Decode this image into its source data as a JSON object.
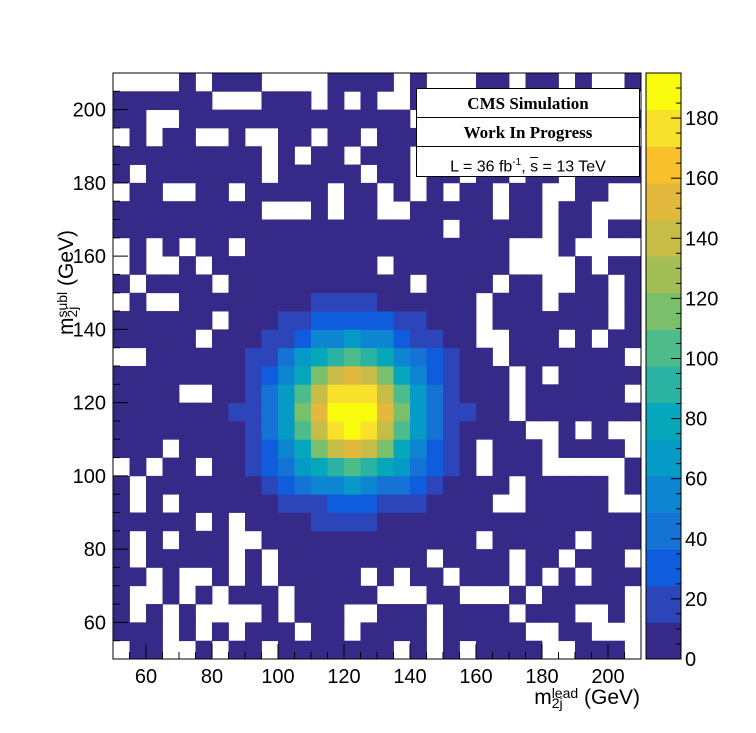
{
  "chart_data": {
    "type": "heatmap",
    "title": "",
    "xlabel": "m",
    "xlabel_sup": "lead",
    "xlabel_sub": "2j",
    "xlabel_unit": " (GeV)",
    "ylabel": "m",
    "ylabel_sup": "subl",
    "ylabel_sub": "2j",
    "ylabel_unit": " (GeV)",
    "xlim": [
      50,
      210
    ],
    "ylim": [
      50,
      210
    ],
    "bin_width": 5,
    "x_ticks": [
      60,
      80,
      100,
      120,
      140,
      160,
      180,
      200
    ],
    "y_ticks": [
      60,
      80,
      100,
      120,
      140,
      160,
      180,
      200
    ],
    "z_range": [
      0,
      195
    ],
    "z_ticks": [
      0,
      20,
      40,
      60,
      80,
      100,
      120,
      140,
      160,
      180
    ],
    "peak": {
      "x": 122.5,
      "y": 117.5,
      "value": 195
    },
    "annotations": [
      "CMS Simulation",
      "Work In Progress",
      "L = 36 fb",
      "-1",
      ", ",
      "s",
      " = 13 TeV"
    ]
  },
  "colors": {
    "palette": [
      "#352a87",
      "#2c45b8",
      "#0f5cdd",
      "#1473d4",
      "#0d85d0",
      "#069ac7",
      "#06a7bb",
      "#2ab3a2",
      "#4ebb8a",
      "#7abf6b",
      "#a3be55",
      "#c6bc46",
      "#e2b83d",
      "#f9c02c",
      "#f8e12b",
      "#f9fb0e"
    ],
    "background": "#ffffff",
    "frame": "#000000"
  }
}
